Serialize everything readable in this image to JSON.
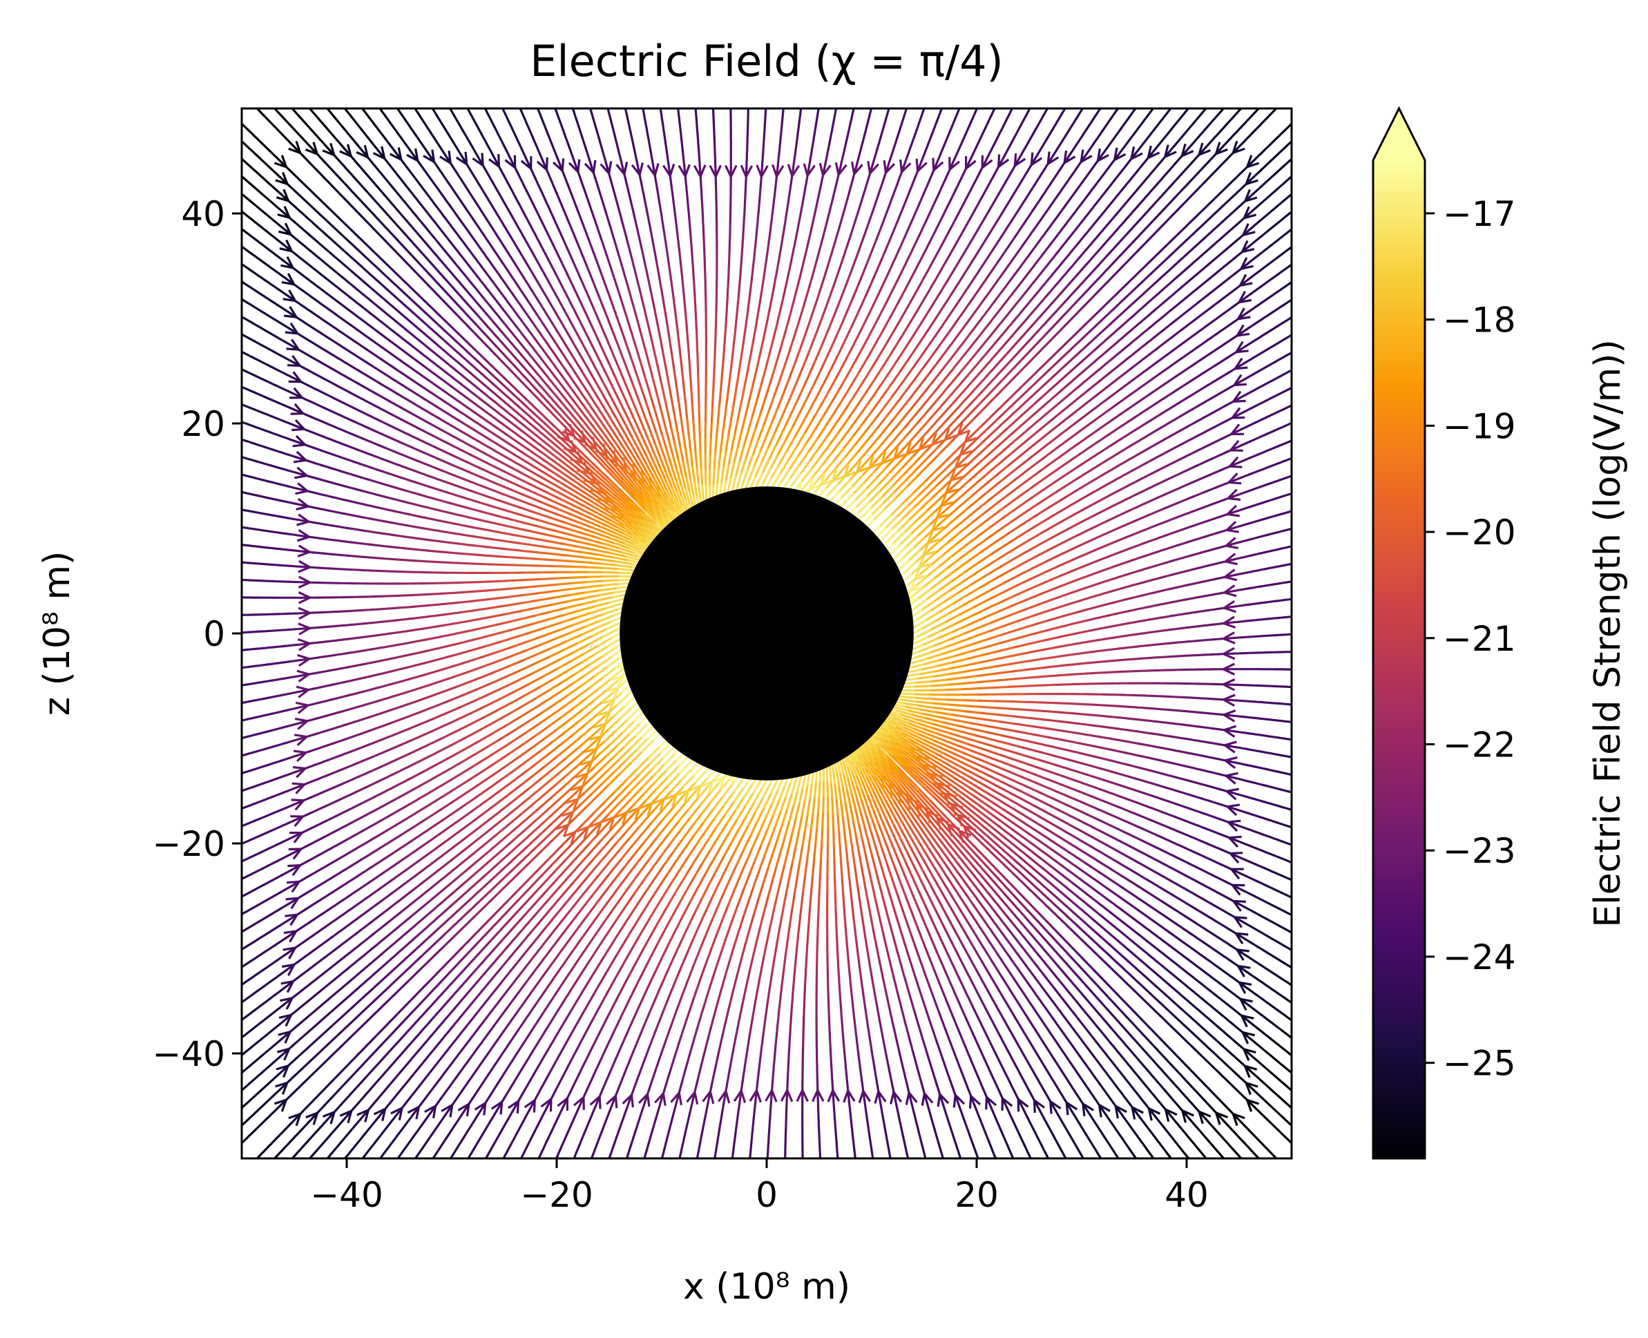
{
  "chart_data": {
    "type": "streamplot",
    "title": "Electric Field (χ = π/4)",
    "xlabel": "x (10⁸ m)",
    "ylabel": "z (10⁸ m)",
    "xlim": [
      -50,
      50
    ],
    "ylim": [
      -50,
      50
    ],
    "x_ticks": [
      "−40",
      "−20",
      "0",
      "20",
      "40"
    ],
    "y_ticks": [
      "−40",
      "−20",
      "0",
      "20",
      "40"
    ],
    "x_tick_values": [
      -40,
      -20,
      0,
      20,
      40
    ],
    "y_tick_values": [
      -40,
      -20,
      0,
      20,
      40
    ],
    "central_body": {
      "center": [
        0,
        0
      ],
      "radius": 14,
      "color": "#000000"
    },
    "field_direction": "inward",
    "field_inclination": "π/4",
    "colorbar": {
      "label": "Electric Field Strength (log(V/m))",
      "range": [
        -25.9,
        -16.5
      ],
      "extend": "max",
      "ticks": [
        "−17",
        "−18",
        "−19",
        "−20",
        "−21",
        "−22",
        "−23",
        "−24",
        "−25"
      ],
      "tick_values": [
        -17,
        -18,
        -19,
        -20,
        -21,
        -22,
        -23,
        -24,
        -25
      ],
      "colormap": "inferno",
      "colormap_stops": [
        "#000004",
        "#1b0c41",
        "#4a0c6b",
        "#781c6d",
        "#a52c60",
        "#cf4446",
        "#ed6925",
        "#fb9b06",
        "#f7d13d",
        "#fcffa4"
      ]
    },
    "grid": false,
    "legend": "none"
  }
}
